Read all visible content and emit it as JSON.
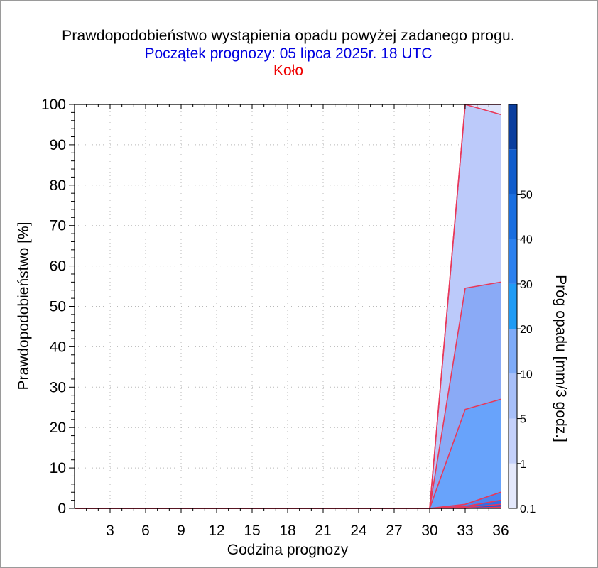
{
  "title": {
    "line1": "Prawdopodobieństwo wystąpienia opadu powyżej zadanego progu.",
    "line2": "Początek prognozy: 05 lipca 2025r. 18 UTC",
    "line3": "Koło"
  },
  "colors": {
    "title": "#000000",
    "subtitle": "#0000e0",
    "location": "#ee0000",
    "outline": "#e8385a"
  },
  "chart_data": {
    "type": "area",
    "xlabel": "Godzina prognozy",
    "ylabel": "Prawdopodobieństwo [%]",
    "colorbar_label": "Próg opadu [mm/3 godz.]",
    "x_ticks": [
      3,
      6,
      9,
      12,
      15,
      18,
      21,
      24,
      27,
      30,
      33,
      36
    ],
    "y_ticks": [
      0,
      10,
      20,
      30,
      40,
      50,
      60,
      70,
      80,
      90,
      100
    ],
    "xlim": [
      0,
      36
    ],
    "ylim": [
      0,
      100
    ],
    "grid": true,
    "x": [
      0,
      30,
      33,
      36
    ],
    "series": [
      {
        "threshold": 0.1,
        "values": [
          0,
          0,
          100,
          100
        ],
        "color": "#dfe4fb"
      },
      {
        "threshold": 1,
        "values": [
          0,
          0,
          100,
          97.5
        ],
        "color": "#bccafa"
      },
      {
        "threshold": 5,
        "values": [
          0,
          0,
          54.5,
          56
        ],
        "color": "#8aaaf6"
      },
      {
        "threshold": 10,
        "values": [
          0,
          0,
          24.5,
          27
        ],
        "color": "#68a3fb"
      },
      {
        "threshold": 20,
        "values": [
          0,
          0,
          1,
          4
        ],
        "color": "#4a86f2"
      },
      {
        "threshold": 30,
        "values": [
          0,
          0,
          0.5,
          2
        ],
        "color": "#2e6fe6"
      },
      {
        "threshold": 40,
        "values": [
          0,
          0,
          0.2,
          1
        ],
        "color": "#1a5ad6"
      },
      {
        "threshold": 50,
        "values": [
          0,
          0,
          0,
          0.3
        ],
        "color": "#0e44b8"
      }
    ],
    "colorbar": {
      "labels": [
        "0.1",
        "1",
        "5",
        "10",
        "20",
        "30",
        "40",
        "50"
      ],
      "colors": [
        "#e4e8fb",
        "#c4d0fa",
        "#a7bff9",
        "#7eabf8",
        "#1f9bf5",
        "#2b80ee",
        "#196ee0",
        "#0f5ccc",
        "#0a3e9e"
      ]
    }
  }
}
